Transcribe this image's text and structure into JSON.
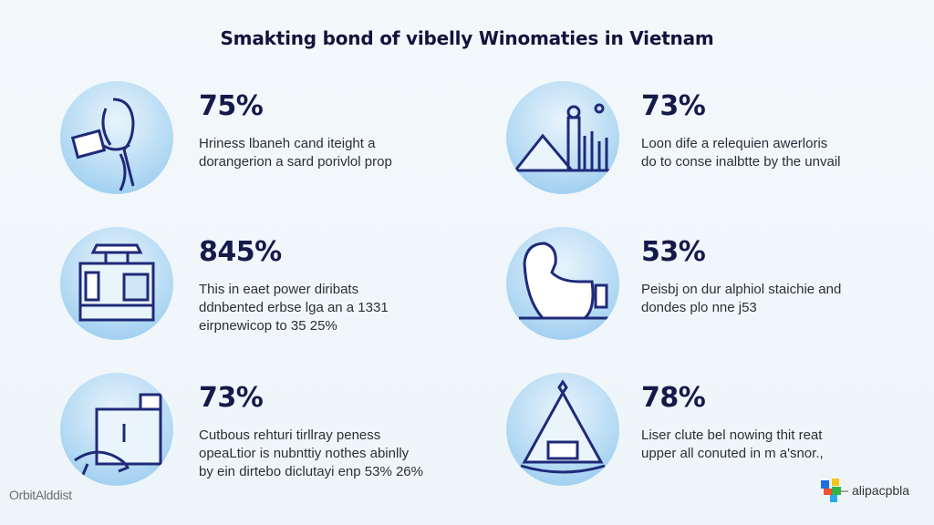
{
  "title": "Smakting bond of vibelly Winomaties in Vietnam",
  "stats": [
    {
      "percent": "75%",
      "lines": [
        "Hriness lbaneh cand iteight a",
        "dorangerion a sard porivlol prop"
      ],
      "icon": "person-reading-icon"
    },
    {
      "percent": "73%",
      "lines": [
        "Loon dife a relequien awerloris",
        "do to conse inalbtte by the unvail"
      ],
      "icon": "mountain-city-icon"
    },
    {
      "percent": "845%",
      "lines": [
        "This in eaet power diribats",
        "ddnbented erbse lga an a 1331",
        "eirpnewicop to 35 25%"
      ],
      "icon": "building-window-icon"
    },
    {
      "percent": "53%",
      "lines": [
        "Peisbj on dur alphiol staichie and",
        "dondes plo nne j53"
      ],
      "icon": "person-sitting-icon"
    },
    {
      "percent": "73%",
      "lines": [
        "Cutbous rehturi tirllray peness",
        "opeaLtior is nubnttiy nothes abinlly",
        "by ein dirtebo diclutayi enp 53% 26%"
      ],
      "icon": "dog-desk-icon"
    },
    {
      "percent": "78%",
      "lines": [
        "Liser clute bel nowing thit reat",
        "upper all conuted in m a'snor.,"
      ],
      "icon": "pyramid-icon"
    }
  ],
  "footer": {
    "left_brand": "OrbitAlddist",
    "right_brand": "alipacpbla"
  },
  "colors": {
    "accent": "#141a4a",
    "circle": "#b9dcf4",
    "line_art": "#1f2a78"
  }
}
